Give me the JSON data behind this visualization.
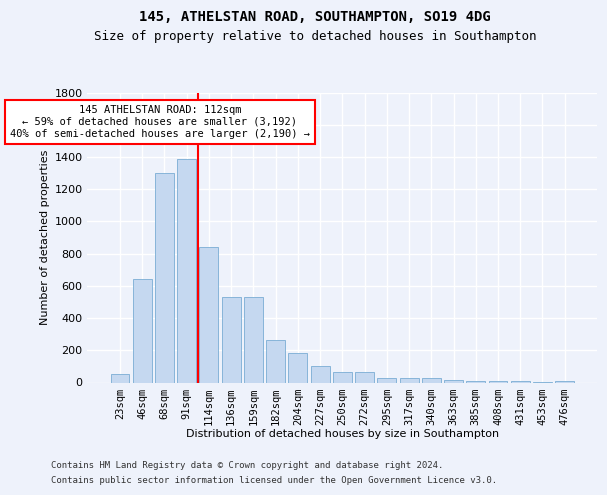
{
  "title1": "145, ATHELSTAN ROAD, SOUTHAMPTON, SO19 4DG",
  "title2": "Size of property relative to detached houses in Southampton",
  "xlabel": "Distribution of detached houses by size in Southampton",
  "ylabel": "Number of detached properties",
  "categories": [
    "23sqm",
    "46sqm",
    "68sqm",
    "91sqm",
    "114sqm",
    "136sqm",
    "159sqm",
    "182sqm",
    "204sqm",
    "227sqm",
    "250sqm",
    "272sqm",
    "295sqm",
    "317sqm",
    "340sqm",
    "363sqm",
    "385sqm",
    "408sqm",
    "431sqm",
    "453sqm",
    "476sqm"
  ],
  "values": [
    50,
    640,
    1300,
    1390,
    840,
    530,
    530,
    265,
    185,
    100,
    65,
    65,
    30,
    30,
    25,
    15,
    10,
    10,
    8,
    5,
    10
  ],
  "bar_color": "#c5d8f0",
  "bar_edge_color": "#7aadd4",
  "vline_color": "red",
  "vline_x_index": 4,
  "annotation_text": "145 ATHELSTAN ROAD: 112sqm\n← 59% of detached houses are smaller (3,192)\n40% of semi-detached houses are larger (2,190) →",
  "annotation_box_color": "white",
  "annotation_box_edge_color": "red",
  "ylim": [
    0,
    1800
  ],
  "yticks": [
    0,
    200,
    400,
    600,
    800,
    1000,
    1200,
    1400,
    1600,
    1800
  ],
  "footer1": "Contains HM Land Registry data © Crown copyright and database right 2024.",
  "footer2": "Contains public sector information licensed under the Open Government Licence v3.0.",
  "bg_color": "#eef2fb",
  "grid_color": "white",
  "title1_fontsize": 10,
  "title2_fontsize": 9,
  "axis_label_fontsize": 8,
  "tick_fontsize": 8,
  "annotation_fontsize": 7.5,
  "footer_fontsize": 6.5
}
